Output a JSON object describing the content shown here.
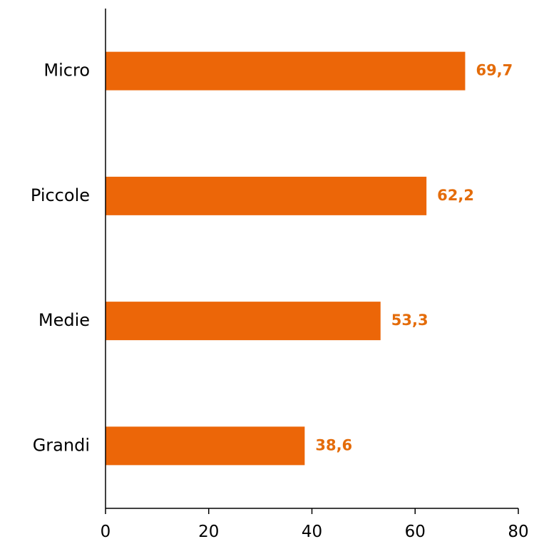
{
  "chart_data": {
    "type": "bar",
    "orientation": "horizontal",
    "categories": [
      "Micro",
      "Piccole",
      "Medie",
      "Grandi"
    ],
    "values": [
      69.7,
      62.2,
      53.3,
      38.6
    ],
    "value_labels": [
      "69,7",
      "62,2",
      "53,3",
      "38,6"
    ],
    "xlim": [
      0,
      80
    ],
    "x_ticks": [
      0,
      20,
      40,
      60,
      80
    ],
    "x_tick_labels": [
      "0",
      "20",
      "40",
      "60",
      "80"
    ],
    "grid": false,
    "legend": "none",
    "bar_color": "#EC6608",
    "label_color": "#E46C0A"
  }
}
